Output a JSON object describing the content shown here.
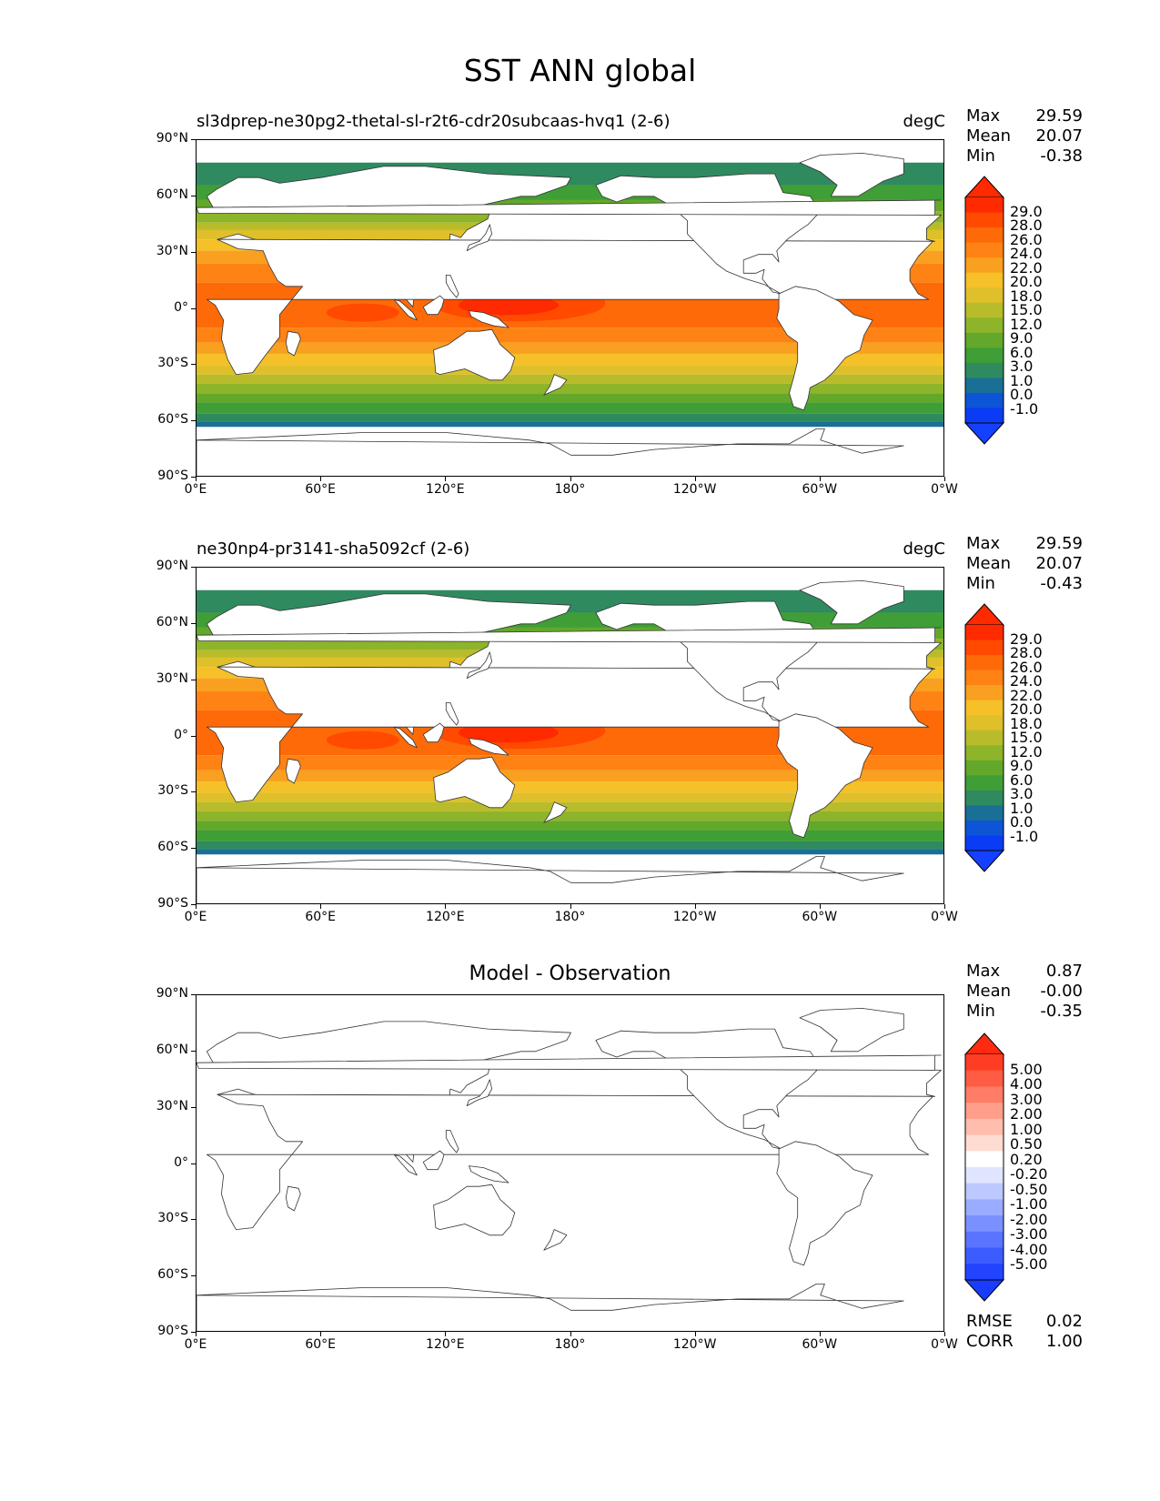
{
  "figure": {
    "title": "SST ANN global"
  },
  "axes": {
    "lat_ticks": [
      "90°N",
      "60°N",
      "30°N",
      "0°",
      "30°S",
      "60°S",
      "90°S"
    ],
    "lon_ticks": [
      "0°E",
      "60°E",
      "120°E",
      "180°",
      "120°W",
      "60°W",
      "0°W"
    ]
  },
  "panels": [
    {
      "title": "sl3dprep-ne30pg2-thetal-sl-r2t6-cdr20subcaas-hvq1 (2-6)",
      "units": "degC",
      "stats": [
        {
          "label": "Max",
          "value": "29.59"
        },
        {
          "label": "Mean",
          "value": "20.07"
        },
        {
          "label": "Min",
          "value": "-0.38"
        }
      ],
      "colorbar": {
        "labels": [
          "29.0",
          "28.0",
          "26.0",
          "24.0",
          "22.0",
          "20.0",
          "18.0",
          "15.0",
          "12.0",
          "9.0",
          "6.0",
          "3.0",
          "1.0",
          "0.0",
          "-1.0"
        ],
        "colors": [
          "#ff2a00",
          "#ff4a00",
          "#ff6a08",
          "#ff8214",
          "#f9a020",
          "#f5c028",
          "#dfc02a",
          "#b8bc2a",
          "#8eb42a",
          "#63a82a",
          "#3f9e35",
          "#2f8a60",
          "#1a6f96",
          "#0c55d6",
          "#0a3cf5"
        ],
        "extend_top": "#ff2a00",
        "extend_bottom": "#1440ff"
      },
      "extra_stats": []
    },
    {
      "title": "ne30np4-pr3141-sha5092cf (2-6)",
      "units": "degC",
      "stats": [
        {
          "label": "Max",
          "value": "29.59"
        },
        {
          "label": "Mean",
          "value": "20.07"
        },
        {
          "label": "Min",
          "value": "-0.43"
        }
      ],
      "colorbar": {
        "labels": [
          "29.0",
          "28.0",
          "26.0",
          "24.0",
          "22.0",
          "20.0",
          "18.0",
          "15.0",
          "12.0",
          "9.0",
          "6.0",
          "3.0",
          "1.0",
          "0.0",
          "-1.0"
        ],
        "colors": [
          "#ff2a00",
          "#ff4a00",
          "#ff6a08",
          "#ff8214",
          "#f9a020",
          "#f5c028",
          "#dfc02a",
          "#b8bc2a",
          "#8eb42a",
          "#63a82a",
          "#3f9e35",
          "#2f8a60",
          "#1a6f96",
          "#0c55d6",
          "#0a3cf5"
        ],
        "extend_top": "#ff2a00",
        "extend_bottom": "#1440ff"
      },
      "extra_stats": []
    },
    {
      "title": "Model - Observation",
      "units": "",
      "stats": [
        {
          "label": "Max",
          "value": "0.87"
        },
        {
          "label": "Mean",
          "value": "-0.00"
        },
        {
          "label": "Min",
          "value": "-0.35"
        }
      ],
      "colorbar": {
        "labels": [
          "5.00",
          "4.00",
          "3.00",
          "2.00",
          "1.00",
          "0.50",
          "0.20",
          "-0.20",
          "-0.50",
          "-1.00",
          "-2.00",
          "-3.00",
          "-4.00",
          "-5.00"
        ],
        "colors": [
          "#ff3d24",
          "#ff5c44",
          "#ff7d66",
          "#ff9e8a",
          "#ffbdad",
          "#ffdcd2",
          "#ffffff",
          "#dfe4ff",
          "#bcc8ff",
          "#9aacff",
          "#7a90ff",
          "#5a74ff",
          "#3c5cff",
          "#2244ff"
        ],
        "extend_top": "#ff2a10",
        "extend_bottom": "#1a3cff"
      },
      "extra_stats": [
        {
          "label": "RMSE",
          "value": "0.02"
        },
        {
          "label": "CORR",
          "value": "1.00"
        }
      ]
    }
  ]
}
